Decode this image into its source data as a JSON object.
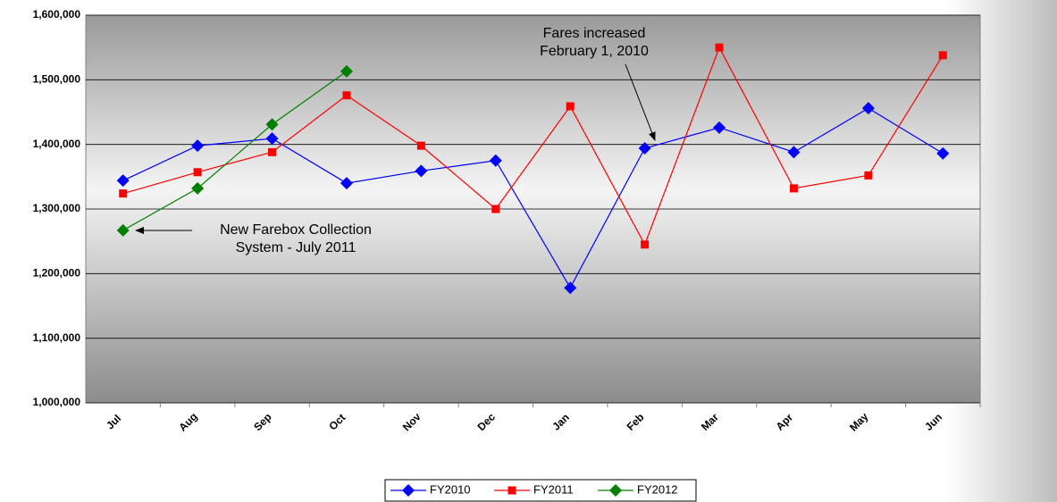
{
  "chart_data": {
    "type": "line",
    "categories": [
      "Jul",
      "Aug",
      "Sep",
      "Oct",
      "Nov",
      "Dec",
      "Jan",
      "Feb",
      "Mar",
      "Apr",
      "May",
      "Jun"
    ],
    "series": [
      {
        "name": "FY2010",
        "color": "#0000ff",
        "marker": "diamond",
        "values": [
          1344000,
          1398000,
          1409000,
          1340000,
          1359000,
          1375000,
          1178000,
          1394000,
          1426000,
          1388000,
          1456000,
          1386000
        ]
      },
      {
        "name": "FY2011",
        "color": "#ff0000",
        "marker": "square",
        "values": [
          1324000,
          1357000,
          1388000,
          1476000,
          1398000,
          1300000,
          1459000,
          1245000,
          1550000,
          1332000,
          1352000,
          1538000
        ]
      },
      {
        "name": "FY2012",
        "color": "#008000",
        "marker": "diamond",
        "values": [
          1267000,
          1332000,
          1431000,
          1513000,
          null,
          null,
          null,
          null,
          null,
          null,
          null,
          null
        ]
      }
    ],
    "ylim": [
      1000000,
      1600000
    ],
    "yticks": [
      {
        "value": 1000000,
        "label": "1,000,000"
      },
      {
        "value": 1100000,
        "label": "1,100,000"
      },
      {
        "value": 1200000,
        "label": "1,200,000"
      },
      {
        "value": 1300000,
        "label": "1,300,000"
      },
      {
        "value": 1400000,
        "label": "1,400,000"
      },
      {
        "value": 1500000,
        "label": "1,500,000"
      },
      {
        "value": 1600000,
        "label": "1,600,000"
      }
    ],
    "grid": true,
    "legend": "bottom",
    "annotations": [
      {
        "lines": [
          "Fares increased",
          "February 1, 2010"
        ]
      },
      {
        "lines": [
          "New Farebox Collection",
          "System - July 2011"
        ]
      }
    ]
  }
}
